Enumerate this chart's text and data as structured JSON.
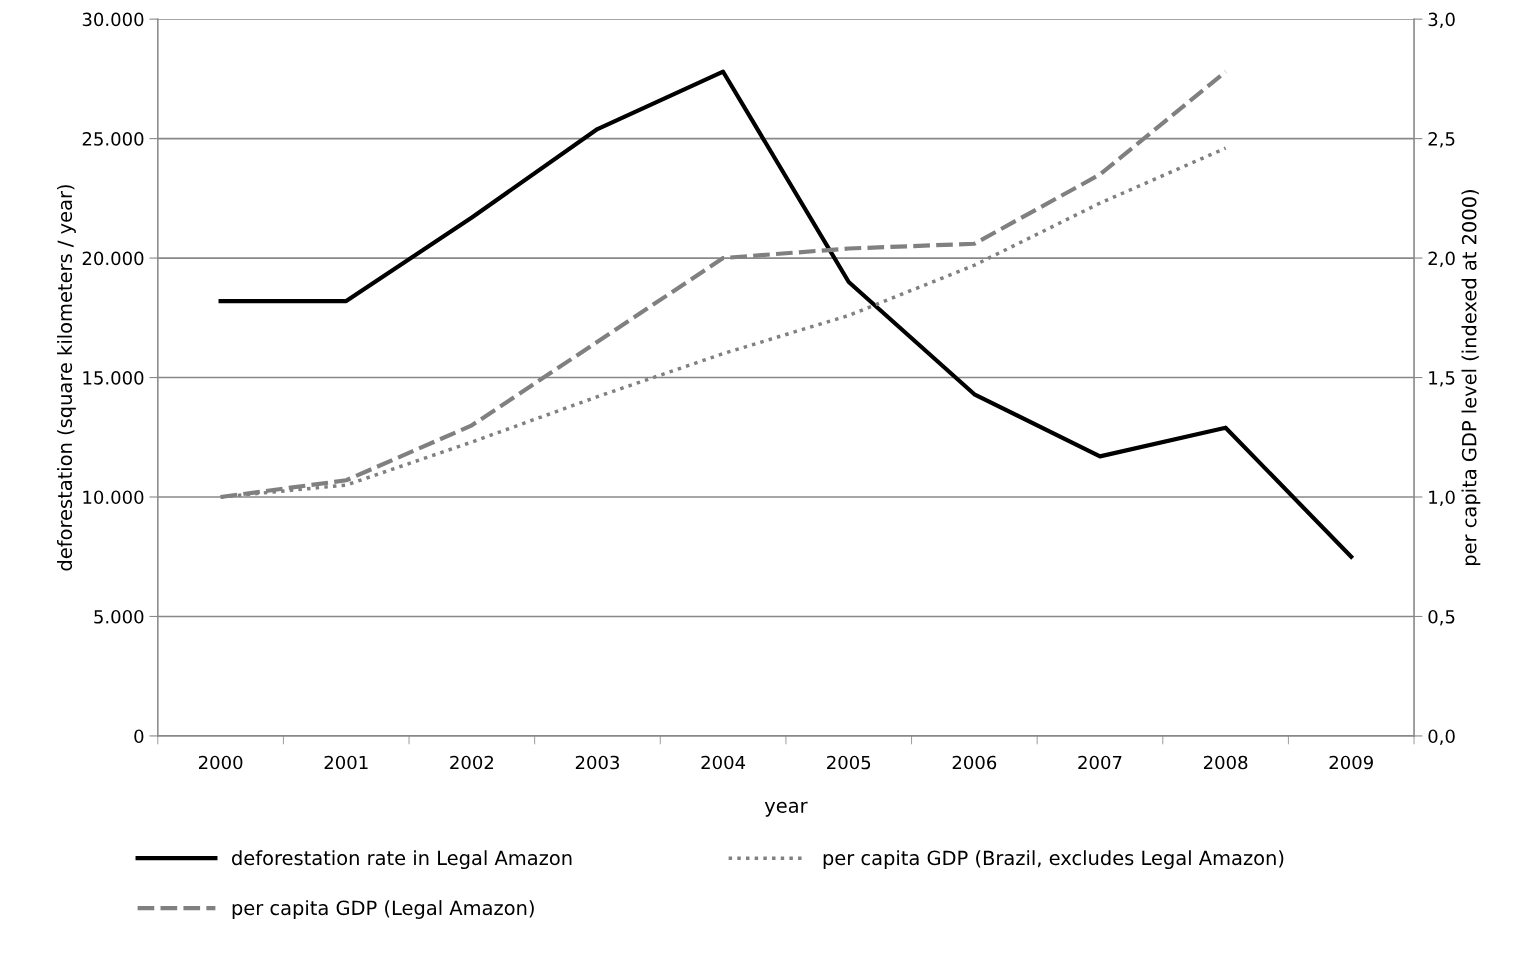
{
  "chart_data": {
    "type": "line",
    "xlabel": "year",
    "ylabel": "deforestation (square kilometers / year)",
    "y2label": "per capita GDP level (indexed at 2000)",
    "categories": [
      "2000",
      "2001",
      "2002",
      "2003",
      "2004",
      "2005",
      "2006",
      "2007",
      "2008",
      "2009"
    ],
    "series": [
      {
        "name": "deforestation rate in Legal Amazon",
        "color": "#000000",
        "line_style": "solid",
        "values": [
          18200,
          18200,
          21700,
          25400,
          27800,
          19000,
          14300,
          11700,
          12900,
          7500
        ]
      },
      {
        "name": "per capita GDP (Legal Amazon)",
        "color": "#808080",
        "line_style": "dashed",
        "axis": "y2",
        "values": [
          1.0,
          1.07,
          1.3,
          1.65,
          2.0,
          2.04,
          2.06,
          2.35,
          2.78,
          null
        ]
      },
      {
        "name": "per capita GDP (Brazil, excludes Legal Amazon)",
        "color": "#808080",
        "line_style": "dotted",
        "axis": "y2",
        "values": [
          1.0,
          1.05,
          1.23,
          1.42,
          1.6,
          1.76,
          1.97,
          2.23,
          2.46,
          null
        ]
      }
    ],
    "ylim": [
      0,
      30000
    ],
    "yticks": [
      0,
      {
        "value": 5000,
        "label": "5.000"
      },
      {
        "value": 10000,
        "label": "10.000"
      },
      {
        "value": 15000,
        "label": "15.000"
      },
      {
        "value": 20000,
        "label": "20.000"
      },
      {
        "value": 25000,
        "label": "25.000"
      },
      {
        "value": 30000,
        "label": "30.000"
      }
    ],
    "y2lim": [
      0,
      3
    ],
    "y2ticks": [
      {
        "value": 0,
        "label": "0,0"
      },
      {
        "value": 0.5,
        "label": "0,5"
      },
      {
        "value": 1,
        "label": "1,0"
      },
      {
        "value": 1.5,
        "label": "1,5"
      },
      {
        "value": 2,
        "label": "2,0"
      },
      {
        "value": 2.5,
        "label": "2,5"
      },
      {
        "value": 3,
        "label": "3,0"
      }
    ],
    "grid": "y",
    "legend": "bottom",
    "marker": "none"
  }
}
